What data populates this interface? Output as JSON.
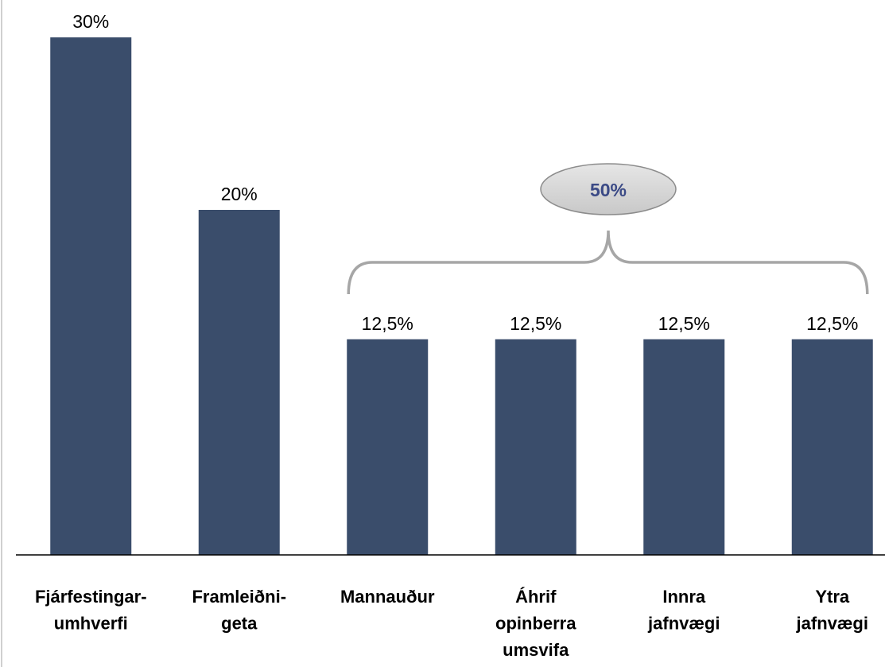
{
  "chart_data": {
    "type": "bar",
    "categories": [
      "Fjárfestingar-\numhverfi",
      "Framleiðni-\ngeta",
      "Mannauður",
      "Áhrif\nopinberra\numsvifa",
      "Innra\njafnvægi",
      "Ytra\njafnvægi"
    ],
    "values": [
      30,
      20,
      12.5,
      12.5,
      12.5,
      12.5
    ],
    "value_labels": [
      "30%",
      "20%",
      "12,5%",
      "12,5%",
      "12,5%",
      "12,5%"
    ],
    "color": "#3a4d6b",
    "ylim": [
      0,
      30
    ],
    "annotation": "50%"
  }
}
